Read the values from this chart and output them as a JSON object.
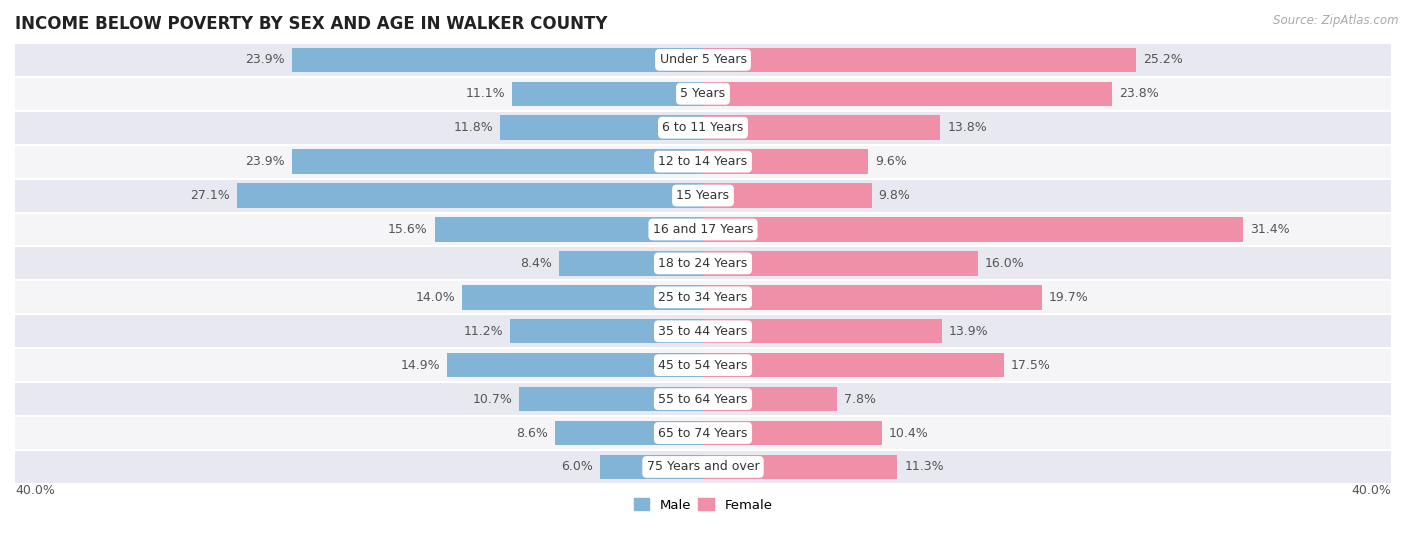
{
  "title": "INCOME BELOW POVERTY BY SEX AND AGE IN WALKER COUNTY",
  "source": "Source: ZipAtlas.com",
  "categories": [
    "Under 5 Years",
    "5 Years",
    "6 to 11 Years",
    "12 to 14 Years",
    "15 Years",
    "16 and 17 Years",
    "18 to 24 Years",
    "25 to 34 Years",
    "35 to 44 Years",
    "45 to 54 Years",
    "55 to 64 Years",
    "65 to 74 Years",
    "75 Years and over"
  ],
  "male": [
    23.9,
    11.1,
    11.8,
    23.9,
    27.1,
    15.6,
    8.4,
    14.0,
    11.2,
    14.9,
    10.7,
    8.6,
    6.0
  ],
  "female": [
    25.2,
    23.8,
    13.8,
    9.6,
    9.8,
    31.4,
    16.0,
    19.7,
    13.9,
    17.5,
    7.8,
    10.4,
    11.3
  ],
  "male_color": "#82b4d8",
  "female_color": "#f090a8",
  "label_color_inside": "#ffffff",
  "label_color_outside": "#555555",
  "bg_odd": "#e8e8f0",
  "bg_even": "#f5f5f8",
  "xlim": 40.0,
  "bar_height": 0.72,
  "title_fontsize": 12,
  "label_fontsize": 9,
  "cat_fontsize": 9,
  "tick_fontsize": 9,
  "source_fontsize": 8.5
}
